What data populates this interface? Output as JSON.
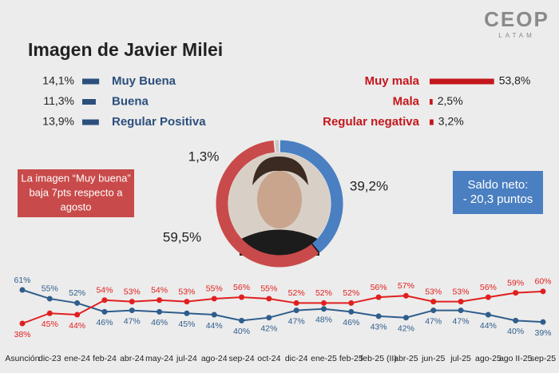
{
  "title": "Imagen de Javier Milei",
  "logo": {
    "name": "CEOP",
    "subtitle": "LATAM"
  },
  "notes": [
    {
      "lines": [
        "La imagen “Muy buena”",
        "baja 7pts respecto a",
        "agosto"
      ],
      "color": "#c94a4a"
    },
    {
      "lines": [
        "Saldo neto:",
        "- 20,3 puntos"
      ],
      "color": "#4a7fc1"
    }
  ],
  "chart_data": [
    {
      "type": "bar",
      "categories": [
        "Muy Buena",
        "Buena",
        "Regular Positiva"
      ],
      "values": [
        14.1,
        11.3,
        13.9
      ],
      "value_labels": [
        "14,1%",
        "11,3%",
        "13,9%"
      ],
      "color": "#2c4f7c"
    },
    {
      "type": "bar",
      "categories": [
        "Muy mala",
        "Mala",
        "Regular negativa"
      ],
      "values": [
        53.8,
        2.5,
        3.2
      ],
      "value_labels": [
        "53,8%",
        "2,5%",
        "3,2%"
      ],
      "color": "#c4161c"
    },
    {
      "type": "pie",
      "values": [
        39.2,
        59.5,
        1.3
      ],
      "value_labels": [
        "39,2%",
        "59,5%",
        "1,3%"
      ],
      "colors": [
        "#4a7fc1",
        "#c94a4a",
        "#c8c8c8"
      ]
    },
    {
      "type": "line",
      "categories": [
        "Asunción",
        "dic-23",
        "ene-24",
        "feb-24",
        "abr-24",
        "may-24",
        "jul-24",
        "ago-24",
        "sep-24",
        "oct-24",
        "dic-24",
        "ene-25",
        "feb-25",
        "feb-25 (II)",
        "abr-25",
        "jun-25",
        "jul-25",
        "ago-25",
        "ago II-25",
        "sep-25"
      ],
      "series": [
        {
          "color": "#2f5d8c",
          "values": [
            61,
            55,
            52,
            46,
            47,
            46,
            45,
            44,
            40,
            42,
            47,
            48,
            46,
            43,
            42,
            47,
            47,
            44,
            40,
            39
          ],
          "value_labels": [
            "61%",
            "55%",
            "52%",
            "46%",
            "47%",
            "46%",
            "45%",
            "44%",
            "40%",
            "42%",
            "47%",
            "48%",
            "46%",
            "43%",
            "42%",
            "47%",
            "47%",
            "44%",
            "40%",
            "39%"
          ]
        },
        {
          "color": "#e0201f",
          "values": [
            38,
            45,
            44,
            54,
            53,
            54,
            53,
            55,
            56,
            55,
            52,
            52,
            52,
            56,
            57,
            53,
            53,
            56,
            59,
            60
          ],
          "value_labels": [
            "38%",
            "45%",
            "44%",
            "54%",
            "53%",
            "54%",
            "53%",
            "55%",
            "56%",
            "55%",
            "52%",
            "52%",
            "52%",
            "56%",
            "57%",
            "53%",
            "53%",
            "56%",
            "59%",
            "60%"
          ]
        }
      ]
    }
  ]
}
